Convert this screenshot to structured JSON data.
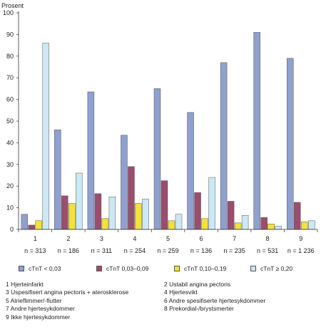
{
  "chart_data": {
    "type": "bar",
    "ylabel": "Prosent",
    "ylim": [
      0,
      100
    ],
    "yticks": [
      0,
      10,
      20,
      30,
      40,
      50,
      60,
      70,
      80,
      90,
      100
    ],
    "grid": false,
    "legend_position": "bottom",
    "categories": [
      "1",
      "2",
      "3",
      "4",
      "5",
      "6",
      "7",
      "8",
      "9"
    ],
    "n_labels": [
      "n = 313",
      "n = 186",
      "n = 311",
      "n = 254",
      "n = 259",
      "n = 136",
      "n = 235",
      "n = 531",
      "n = 1 236"
    ],
    "series": [
      {
        "name": "cTnT < 0,03",
        "color": "#8fa0cf",
        "values": [
          7,
          46,
          63.5,
          43.5,
          65,
          54,
          77,
          91,
          79
        ]
      },
      {
        "name": "cTnT 0,03–0,09",
        "color": "#9b4d6e",
        "values": [
          2,
          15.5,
          16.5,
          29,
          22.5,
          17,
          13,
          5.5,
          12.5
        ]
      },
      {
        "name": "cTnT 0,10–0,19",
        "color": "#f2e23a",
        "values": [
          4,
          12,
          5,
          12,
          4,
          5,
          3,
          2.5,
          3.5
        ]
      },
      {
        "name": "cTnT ≥ 0,20",
        "color": "#cbe8f4",
        "values": [
          86,
          26,
          15,
          14,
          7,
          24,
          6.5,
          1.5,
          4
        ]
      }
    ],
    "notes": [
      "1  Hjerteinfarkt",
      "2  Ustabil angina pectoris",
      "3  Uspesifisert angina pectoris + aterosklerose",
      "4  Hjertesvikt",
      "5  Atrieflimmer/-flutter",
      "6  Andre spesifiserte hjertesykdommer",
      "7  Andre hjertesykdommer",
      "8  Prekordial-/brystsmerter",
      "9  Ikke hjertesykdommer"
    ]
  }
}
